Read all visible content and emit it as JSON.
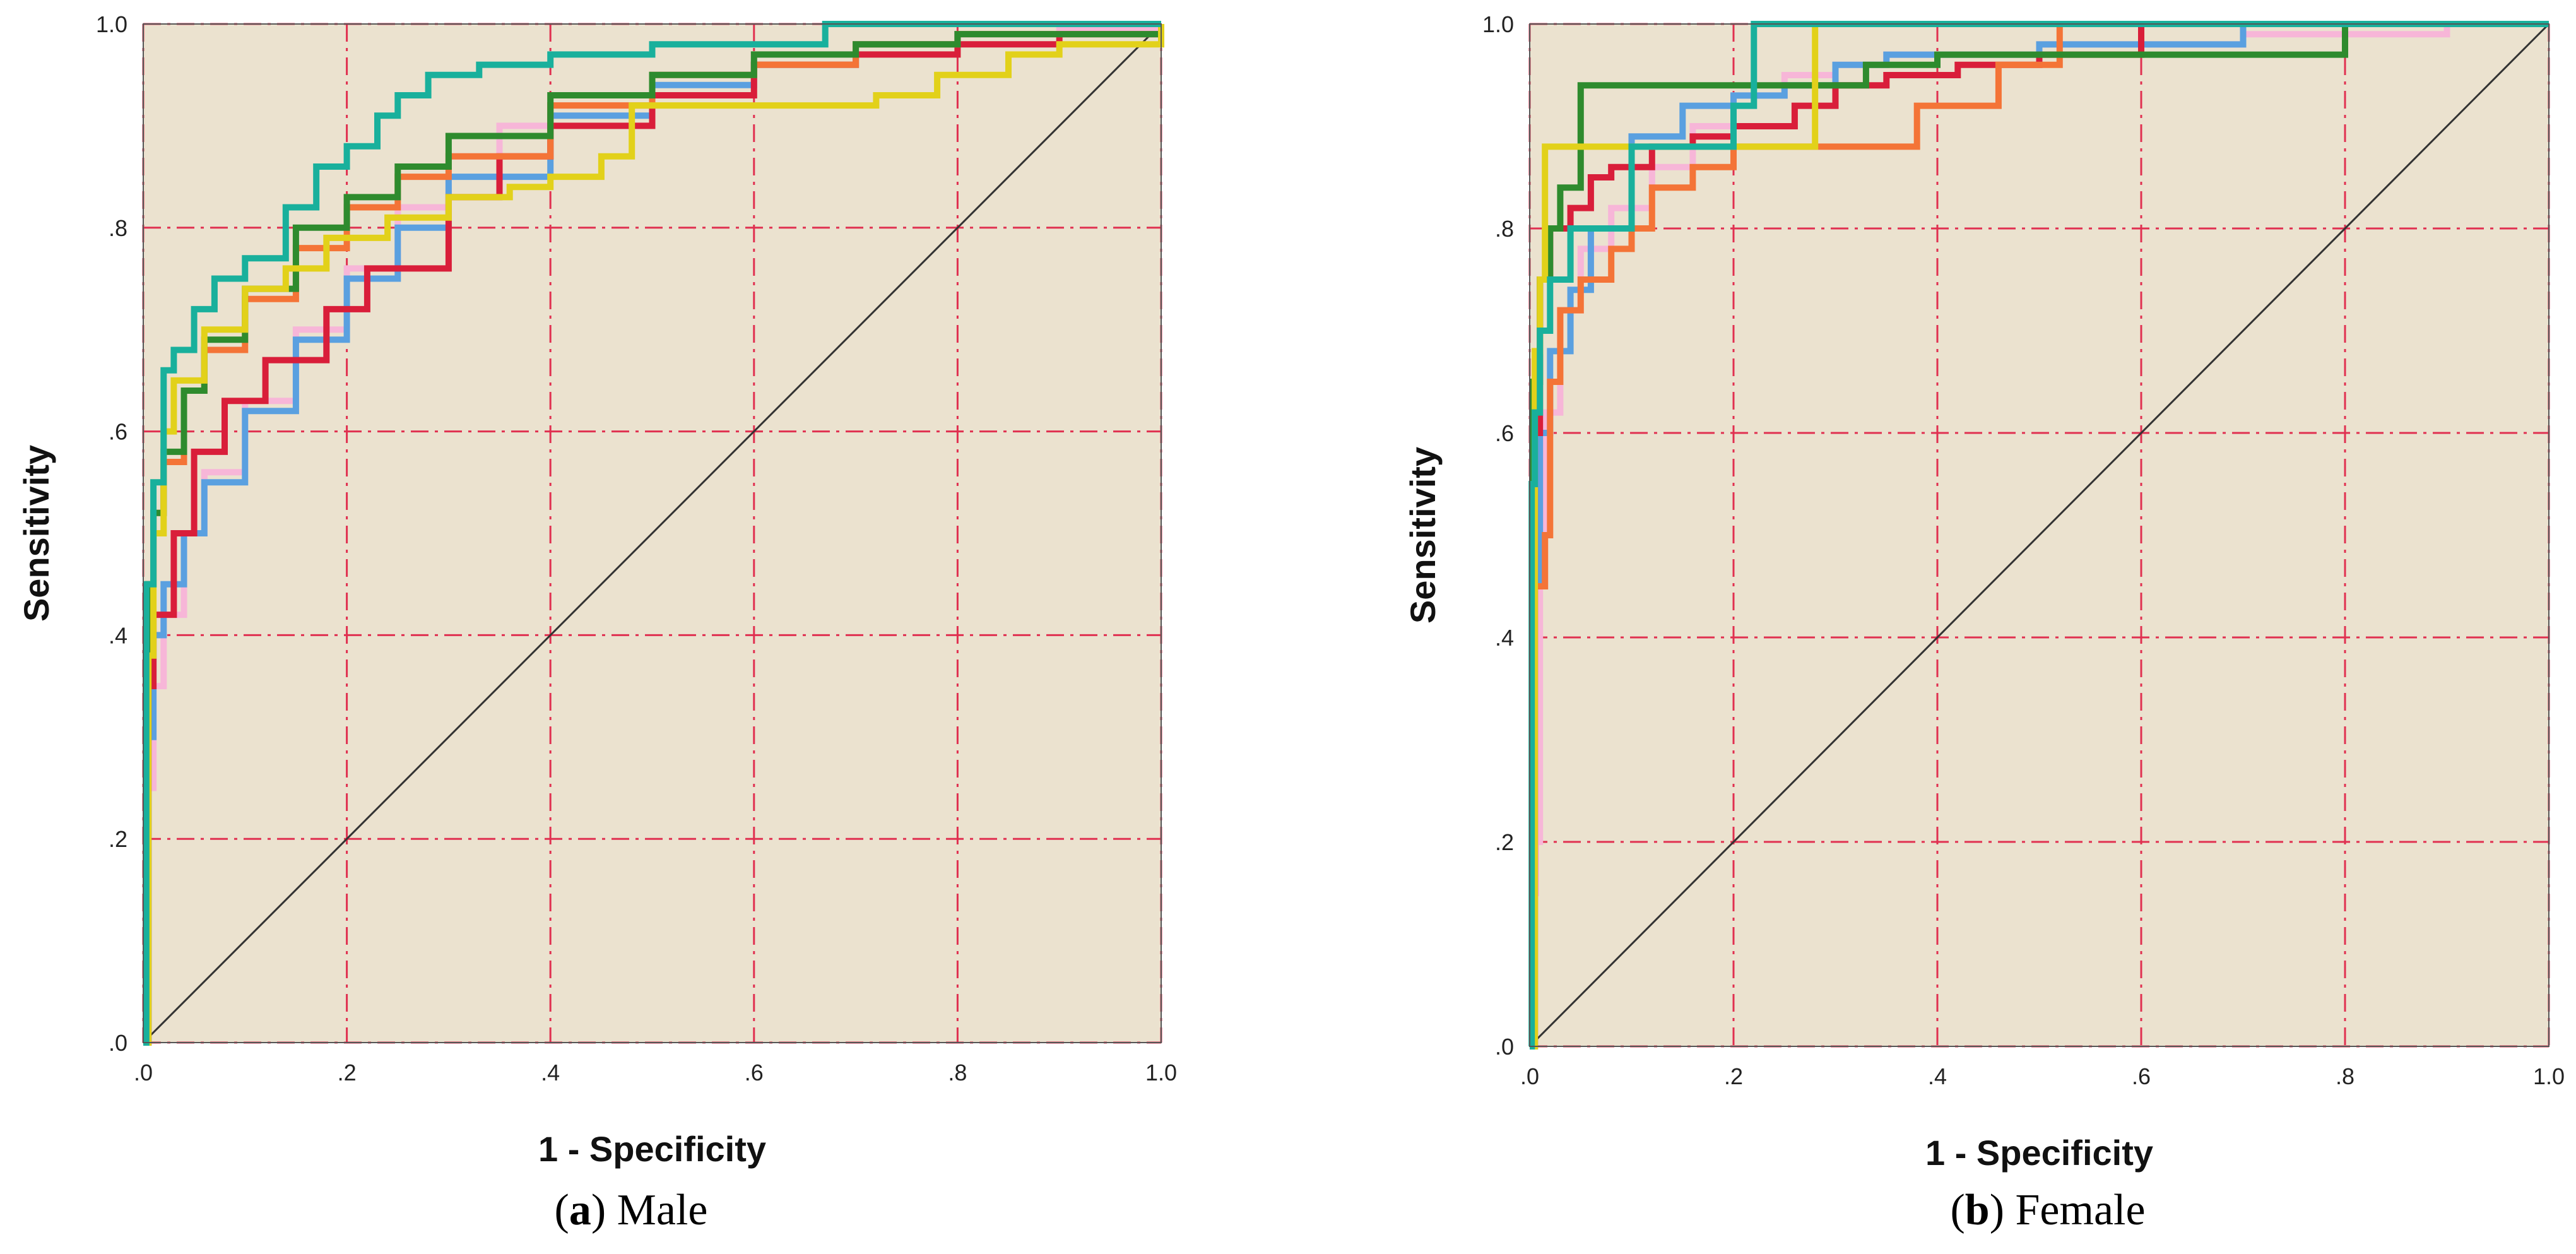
{
  "chart_data": [
    {
      "type": "line",
      "panel_label": "a",
      "panel_name": "Male",
      "caption_open": "(",
      "caption_close": ") ",
      "xlabel": "1 - Specificity",
      "ylabel": "Sensitivity",
      "xlim": [
        0,
        1
      ],
      "ylim": [
        0,
        1
      ],
      "grid": true,
      "legend": "none",
      "xticks": [
        ".0",
        ".2",
        ".4",
        ".6",
        ".8",
        "1.0"
      ],
      "yticks": [
        ".0",
        ".2",
        ".4",
        ".6",
        ".8",
        "1.0"
      ],
      "reference_line": {
        "x": [
          0,
          1
        ],
        "y": [
          0,
          1
        ]
      },
      "series": [
        {
          "name": "pink",
          "color": "#f7b6d8",
          "x": [
            0,
            0.005,
            0.01,
            0.02,
            0.04,
            0.06,
            0.1,
            0.15,
            0.2,
            0.25,
            0.3,
            0.35,
            0.4,
            0.5,
            0.6,
            0.7,
            0.8,
            0.9,
            1.0
          ],
          "y": [
            0,
            0.25,
            0.35,
            0.42,
            0.5,
            0.56,
            0.63,
            0.7,
            0.76,
            0.82,
            0.87,
            0.9,
            0.92,
            0.95,
            0.97,
            0.98,
            0.99,
            0.995,
            1.0
          ]
        },
        {
          "name": "blue",
          "color": "#5aa0e0",
          "x": [
            0,
            0.005,
            0.01,
            0.02,
            0.04,
            0.06,
            0.1,
            0.15,
            0.2,
            0.25,
            0.3,
            0.4,
            0.5,
            0.6,
            0.7,
            0.8,
            1.0
          ],
          "y": [
            0,
            0.3,
            0.4,
            0.45,
            0.5,
            0.55,
            0.62,
            0.69,
            0.75,
            0.8,
            0.85,
            0.91,
            0.94,
            0.96,
            0.98,
            0.99,
            1.0
          ]
        },
        {
          "name": "red",
          "color": "#d91e3a",
          "x": [
            0,
            0.005,
            0.01,
            0.03,
            0.05,
            0.08,
            0.12,
            0.18,
            0.22,
            0.3,
            0.35,
            0.4,
            0.5,
            0.6,
            0.7,
            0.8,
            0.9,
            1.0
          ],
          "y": [
            0,
            0.35,
            0.42,
            0.5,
            0.58,
            0.63,
            0.67,
            0.72,
            0.76,
            0.83,
            0.87,
            0.9,
            0.93,
            0.96,
            0.97,
            0.98,
            0.99,
            1.0
          ]
        },
        {
          "name": "orange",
          "color": "#f47437",
          "x": [
            0,
            0.005,
            0.01,
            0.02,
            0.04,
            0.06,
            0.1,
            0.15,
            0.2,
            0.25,
            0.3,
            0.4,
            0.5,
            0.6,
            0.7,
            0.8,
            1.0
          ],
          "y": [
            0,
            0.45,
            0.52,
            0.57,
            0.64,
            0.68,
            0.73,
            0.78,
            0.82,
            0.85,
            0.87,
            0.92,
            0.95,
            0.96,
            0.98,
            0.99,
            1.0
          ]
        },
        {
          "name": "green",
          "color": "#2e8b2e",
          "x": [
            0,
            0.005,
            0.01,
            0.02,
            0.04,
            0.06,
            0.1,
            0.15,
            0.2,
            0.25,
            0.3,
            0.4,
            0.5,
            0.6,
            0.7,
            0.8,
            1.0
          ],
          "y": [
            0,
            0.45,
            0.52,
            0.58,
            0.64,
            0.69,
            0.74,
            0.8,
            0.83,
            0.86,
            0.89,
            0.93,
            0.95,
            0.97,
            0.98,
            0.99,
            1.0
          ]
        },
        {
          "name": "yellow",
          "color": "#e2d11a",
          "x": [
            0,
            0.005,
            0.01,
            0.02,
            0.03,
            0.06,
            0.1,
            0.14,
            0.18,
            0.24,
            0.3,
            0.36,
            0.4,
            0.45,
            0.48,
            0.52,
            0.65,
            0.72,
            0.78,
            0.85,
            0.9,
            1.0
          ],
          "y": [
            0,
            0.38,
            0.5,
            0.6,
            0.65,
            0.7,
            0.74,
            0.76,
            0.79,
            0.81,
            0.83,
            0.84,
            0.85,
            0.87,
            0.92,
            0.92,
            0.92,
            0.93,
            0.95,
            0.97,
            0.98,
            1.0
          ]
        },
        {
          "name": "teal",
          "color": "#19b09c",
          "x": [
            0,
            0.003,
            0.01,
            0.02,
            0.03,
            0.05,
            0.07,
            0.1,
            0.14,
            0.17,
            0.2,
            0.23,
            0.25,
            0.28,
            0.33,
            0.4,
            0.5,
            0.67,
            1.0
          ],
          "y": [
            0,
            0.45,
            0.55,
            0.66,
            0.68,
            0.72,
            0.75,
            0.77,
            0.82,
            0.86,
            0.88,
            0.91,
            0.93,
            0.95,
            0.96,
            0.97,
            0.98,
            1.0,
            1.0
          ]
        }
      ]
    },
    {
      "type": "line",
      "panel_label": "b",
      "panel_name": "Female",
      "caption_open": "(",
      "caption_close": ") ",
      "xlabel": "1 - Specificity",
      "ylabel": "Sensitivity",
      "xlim": [
        0,
        1
      ],
      "ylim": [
        0,
        1
      ],
      "grid": true,
      "legend": "none",
      "xticks": [
        ".0",
        ".2",
        ".4",
        ".6",
        ".8",
        "1.0"
      ],
      "yticks": [
        ".0",
        ".2",
        ".4",
        ".6",
        ".8",
        "1.0"
      ],
      "reference_line": {
        "x": [
          0,
          1
        ],
        "y": [
          0,
          1
        ]
      },
      "series": [
        {
          "name": "pink",
          "color": "#f7b6d8",
          "x": [
            0,
            0.003,
            0.006,
            0.01,
            0.015,
            0.03,
            0.05,
            0.08,
            0.12,
            0.16,
            0.2,
            0.25,
            0.3,
            0.35,
            0.5,
            0.7,
            0.9,
            1.0
          ],
          "y": [
            0,
            0.15,
            0.2,
            0.45,
            0.62,
            0.72,
            0.78,
            0.82,
            0.86,
            0.9,
            0.93,
            0.95,
            0.96,
            0.97,
            0.98,
            0.99,
            1.0,
            1.0
          ]
        },
        {
          "name": "blue",
          "color": "#5aa0e0",
          "x": [
            0,
            0.005,
            0.01,
            0.02,
            0.04,
            0.06,
            0.1,
            0.15,
            0.2,
            0.25,
            0.3,
            0.35,
            0.5,
            0.7,
            1.0
          ],
          "y": [
            0,
            0.45,
            0.6,
            0.68,
            0.74,
            0.8,
            0.89,
            0.92,
            0.93,
            0.94,
            0.96,
            0.97,
            0.98,
            1.0,
            1.0
          ]
        },
        {
          "name": "red",
          "color": "#d91e3a",
          "x": [
            0,
            0.005,
            0.01,
            0.02,
            0.04,
            0.06,
            0.08,
            0.12,
            0.16,
            0.2,
            0.26,
            0.3,
            0.35,
            0.42,
            0.45,
            0.5,
            0.6,
            1.0
          ],
          "y": [
            0,
            0.6,
            0.75,
            0.8,
            0.82,
            0.85,
            0.86,
            0.88,
            0.89,
            0.9,
            0.92,
            0.94,
            0.95,
            0.96,
            0.96,
            0.97,
            1.0,
            1.0
          ]
        },
        {
          "name": "orange",
          "color": "#f47437",
          "x": [
            0,
            0.005,
            0.015,
            0.02,
            0.03,
            0.05,
            0.08,
            0.1,
            0.12,
            0.16,
            0.2,
            0.37,
            0.38,
            0.44,
            0.46,
            0.52,
            0.52,
            1.0
          ],
          "y": [
            0,
            0.45,
            0.5,
            0.65,
            0.72,
            0.75,
            0.78,
            0.8,
            0.84,
            0.86,
            0.88,
            0.88,
            0.92,
            0.92,
            0.96,
            0.96,
            1.0,
            1.0
          ]
        },
        {
          "name": "green",
          "color": "#2e8b2e",
          "x": [
            0,
            0.003,
            0.01,
            0.02,
            0.03,
            0.05,
            0.1,
            0.2,
            0.3,
            0.33,
            0.4,
            0.6,
            0.8,
            0.8,
            1.0
          ],
          "y": [
            0,
            0.65,
            0.75,
            0.8,
            0.84,
            0.94,
            0.94,
            0.94,
            0.94,
            0.96,
            0.97,
            0.97,
            0.97,
            1.0,
            1.0
          ]
        },
        {
          "name": "yellow",
          "color": "#e2d11a",
          "x": [
            0,
            0.005,
            0.01,
            0.015,
            0.05,
            0.1,
            0.2,
            0.28,
            0.28,
            1.0
          ],
          "y": [
            0,
            0.68,
            0.75,
            0.88,
            0.88,
            0.88,
            0.88,
            0.88,
            1.0,
            1.0
          ]
        },
        {
          "name": "teal",
          "color": "#19b09c",
          "x": [
            0,
            0.002,
            0.005,
            0.01,
            0.02,
            0.04,
            0.1,
            0.2,
            0.22,
            0.22,
            1.0
          ],
          "y": [
            0,
            0.55,
            0.62,
            0.7,
            0.75,
            0.8,
            0.88,
            0.92,
            0.92,
            1.0,
            1.0
          ]
        }
      ]
    }
  ]
}
